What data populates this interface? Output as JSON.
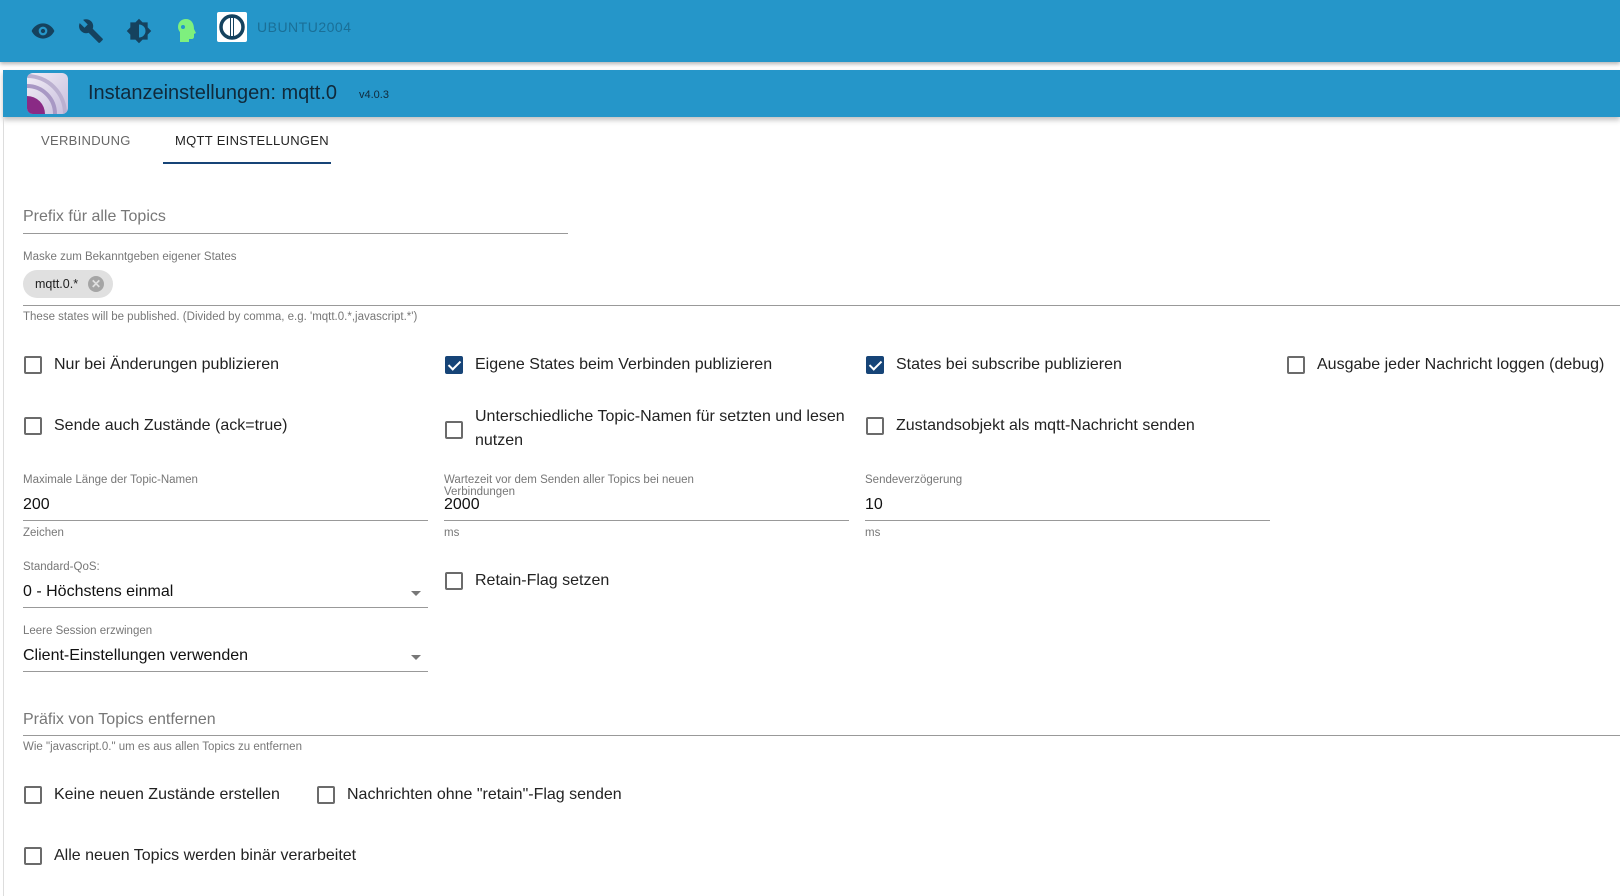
{
  "topbar": {
    "hostname": "UBUNTU2004",
    "icons": [
      "eye-icon",
      "wrench-icon",
      "brightness-icon",
      "expert-head-icon",
      "iobroker-logo"
    ]
  },
  "header": {
    "title": "Instanzeinstellungen: mqtt.0",
    "version": "v4.0.3"
  },
  "tabs": [
    {
      "label": "VERBINDUNG",
      "active": false
    },
    {
      "label": "MQTT EINSTELLUNGEN",
      "active": true
    }
  ],
  "colors": {
    "bar": "#2596c9",
    "checkbox": "#164477",
    "tab_indicator": "#164477"
  },
  "form": {
    "prefix": {
      "placeholder": "Prefix für alle Topics",
      "value": ""
    },
    "mask": {
      "label": "Maske zum Bekanntgeben eigener States",
      "chip": "mqtt.0.*",
      "help": "These states will be published. (Divided by comma, e.g. 'mqtt.0.*,javascript.*')"
    },
    "checks1": [
      {
        "label": "Nur bei Änderungen publizieren",
        "checked": false
      },
      {
        "label": "Eigene States beim Verbinden publizieren",
        "checked": true
      },
      {
        "label": "States bei subscribe publizieren",
        "checked": true
      },
      {
        "label": "Ausgabe jeder Nachricht loggen (debug)",
        "checked": false
      }
    ],
    "checks2": [
      {
        "label": "Sende auch Zustände (ack=true)",
        "checked": false
      },
      {
        "label": "Unterschiedliche Topic-Namen für setzten und lesen nutzen",
        "checked": false
      },
      {
        "label": "Zustandsobjekt als mqtt-Nachricht senden",
        "checked": false
      }
    ],
    "numbers": [
      {
        "label": "Maximale Länge der Topic-Namen",
        "value": "200",
        "unit": "Zeichen"
      },
      {
        "label": "Wartezeit vor dem Senden aller Topics bei neuen Verbindungen",
        "value": "2000",
        "unit": "ms"
      },
      {
        "label": "Sendeverzögerung",
        "value": "10",
        "unit": "ms"
      }
    ],
    "qos": {
      "label": "Standard-QoS:",
      "value": "0 - Höchstens einmal"
    },
    "retain": {
      "label": "Retain-Flag setzen",
      "checked": false
    },
    "session": {
      "label": "Leere Session erzwingen",
      "value": "Client-Einstellungen verwenden"
    },
    "remove_prefix": {
      "placeholder": "Präfix von Topics entfernen",
      "help": "Wie \"javascript.0.\" um es aus allen Topics zu entfernen"
    },
    "checks3": [
      {
        "label": "Keine neuen Zustände erstellen",
        "checked": false
      },
      {
        "label": "Nachrichten ohne \"retain\"-Flag senden",
        "checked": false
      },
      {
        "label": "Alle neuen Topics werden binär verarbeitet",
        "checked": false
      }
    ]
  }
}
